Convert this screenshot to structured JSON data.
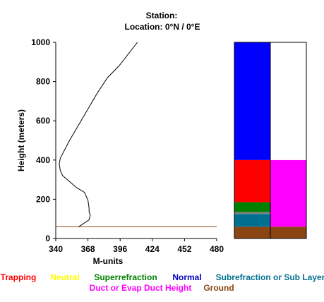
{
  "chart_data": {
    "type": "line",
    "title_line1": "Station:",
    "title_line2": "Location:   0°N /   0°E",
    "xlabel": "M-units",
    "ylabel": "Height (meters)",
    "xlim": [
      340,
      480
    ],
    "ylim": [
      0,
      1000
    ],
    "x_ticks": [
      "340",
      "368",
      "396",
      "424",
      "452",
      "480"
    ],
    "y_ticks": [
      "0",
      "200",
      "400",
      "600",
      "800",
      "1000"
    ],
    "series": [
      {
        "color": "#000000",
        "x": [
          360,
          369,
          370,
          369,
          369,
          368,
          365,
          358,
          346,
          344,
          343,
          344,
          352,
          364,
          376,
          385,
          395,
          411
        ],
        "y": [
          60,
          95,
          120,
          135,
          155,
          195,
          235,
          260,
          320,
          345,
          380,
          410,
          500,
          620,
          740,
          820,
          880,
          1000
        ]
      }
    ],
    "reference_line": {
      "y": 60,
      "color": "#8b4513"
    },
    "duct_columns": [
      {
        "segments": [
          {
            "from": 0,
            "to": 60,
            "color": "#8b4513"
          },
          {
            "from": 60,
            "to": 125,
            "color": "#007090"
          },
          {
            "from": 125,
            "to": 135,
            "color": "#808080"
          },
          {
            "from": 135,
            "to": 185,
            "color": "#008000"
          },
          {
            "from": 185,
            "to": 400,
            "color": "#ff0000"
          },
          {
            "from": 400,
            "to": 1000,
            "color": "#0000ff"
          }
        ]
      },
      {
        "segments": [
          {
            "from": 0,
            "to": 60,
            "color": "#8b4513"
          },
          {
            "from": 60,
            "to": 400,
            "color": "#ff00ff"
          },
          {
            "from": 400,
            "to": 1000,
            "color": "#ffffff"
          }
        ]
      }
    ],
    "legend": [
      {
        "label": "Trapping",
        "color": "#ff0000"
      },
      {
        "label": "Neutral",
        "color": "#ffff00"
      },
      {
        "label": "Superrefraction",
        "color": "#008000"
      },
      {
        "label": "Normal",
        "color": "#0000c0"
      },
      {
        "label": "Subrefraction or Sub Layer",
        "color": "#007090"
      },
      {
        "label": "Duct or Evap Duct Height",
        "color": "#ff00ff"
      },
      {
        "label": "Ground",
        "color": "#8b4513"
      }
    ]
  }
}
